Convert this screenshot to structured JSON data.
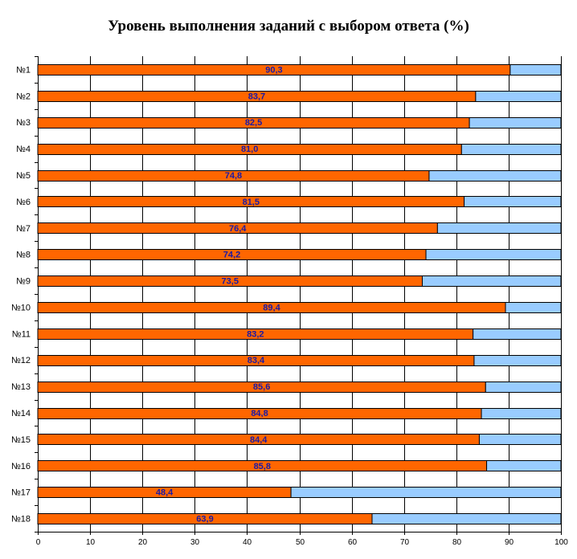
{
  "chart_data": {
    "type": "bar",
    "orientation": "horizontal",
    "stacked": true,
    "title": "Уровень выполнения заданий с выбором ответа (%)",
    "categories": [
      "№1",
      "№2",
      "№3",
      "№4",
      "№5",
      "№6",
      "№7",
      "№8",
      "№9",
      "№10",
      "№11",
      "№12",
      "№13",
      "№14",
      "№15",
      "№16",
      "№17",
      "№18"
    ],
    "series": [
      {
        "color": "#ff6600",
        "values": [
          90.3,
          83.7,
          82.5,
          81.0,
          74.8,
          81.5,
          76.4,
          74.2,
          73.5,
          89.4,
          83.2,
          83.4,
          85.6,
          84.8,
          84.4,
          85.8,
          48.4,
          63.9
        ],
        "data_labels": [
          "90,3",
          "83,7",
          "82,5",
          "81,0",
          "74,8",
          "81,5",
          "76,4",
          "74,2",
          "73,5",
          "89,4",
          "83,2",
          "83,4",
          "85,6",
          "84,8",
          "84,4",
          "85,8",
          "48,4",
          "63,9"
        ]
      },
      {
        "color": "#99ccff",
        "values": [
          9.7,
          16.3,
          17.5,
          19.0,
          25.2,
          18.5,
          23.6,
          25.8,
          26.5,
          10.6,
          16.8,
          16.6,
          14.4,
          15.2,
          15.6,
          14.2,
          51.6,
          36.1
        ]
      }
    ],
    "xlim": [
      0,
      100
    ],
    "xticks": [
      "0",
      "10",
      "20",
      "30",
      "40",
      "50",
      "60",
      "70",
      "80",
      "90",
      "100"
    ],
    "grid": true,
    "legend": false
  }
}
